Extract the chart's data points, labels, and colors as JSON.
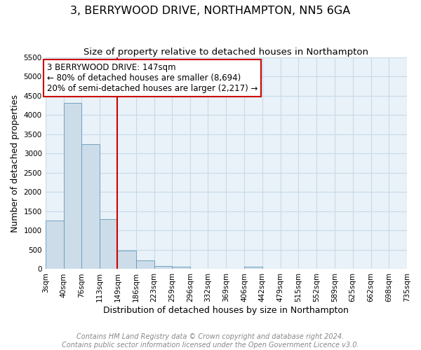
{
  "title": "3, BERRYWOOD DRIVE, NORTHAMPTON, NN5 6GA",
  "subtitle": "Size of property relative to detached houses in Northampton",
  "xlabel": "Distribution of detached houses by size in Northampton",
  "ylabel": "Number of detached properties",
  "bin_edges": [
    3,
    40,
    76,
    113,
    149,
    186,
    223,
    259,
    296,
    332,
    369,
    406,
    442,
    479,
    515,
    552,
    589,
    625,
    662,
    698,
    735
  ],
  "bar_heights": [
    1270,
    4320,
    3250,
    1295,
    480,
    230,
    90,
    60,
    0,
    0,
    0,
    60,
    0,
    0,
    0,
    0,
    0,
    0,
    0,
    0
  ],
  "bar_color": "#ccdce8",
  "bar_edge_color": "#6699bb",
  "vline_x": 149,
  "vline_color": "#cc0000",
  "annotation_text": "3 BERRYWOOD DRIVE: 147sqm\n← 80% of detached houses are smaller (8,694)\n20% of semi-detached houses are larger (2,217) →",
  "annotation_box_edge_color": "#cc0000",
  "ylim": [
    0,
    5500
  ],
  "yticks": [
    0,
    500,
    1000,
    1500,
    2000,
    2500,
    3000,
    3500,
    4000,
    4500,
    5000,
    5500
  ],
  "grid_color": "#c8dae8",
  "background_color": "#e8f2f8",
  "footer_text": "Contains HM Land Registry data © Crown copyright and database right 2024.\nContains public sector information licensed under the Open Government Licence v3.0.",
  "title_fontsize": 11.5,
  "subtitle_fontsize": 9.5,
  "axis_label_fontsize": 9,
  "tick_fontsize": 7.5,
  "annotation_fontsize": 8.5,
  "footer_fontsize": 7
}
